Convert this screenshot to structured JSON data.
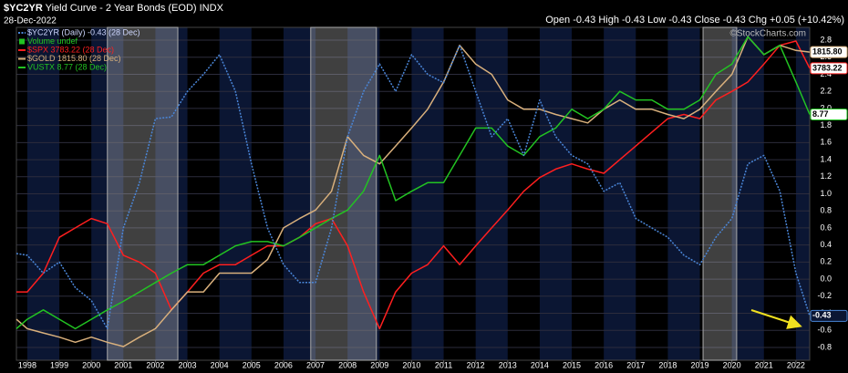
{
  "chart_data": {
    "type": "line",
    "symbol": "$YC2YR",
    "title": "Yield Curve - 2 Year Bonds (EOD)",
    "exchange": "INDX",
    "date": "28-Dec-2022",
    "ohlc": "Open -0.43 High -0.43 Low -0.43 Close -0.43 Chg +0.05 (+10.42%)",
    "watermark": "©StockCharts.com",
    "volume_label": "Volume undef",
    "grid": true,
    "x": [
      1997.66,
      1998,
      1998.5,
      1999,
      1999.5,
      2000,
      2000.5,
      2001,
      2001.5,
      2002,
      2002.5,
      2003,
      2003.5,
      2004,
      2004.5,
      2005,
      2005.5,
      2006,
      2006.5,
      2007,
      2007.5,
      2008,
      2008.5,
      2009,
      2009.5,
      2010,
      2010.5,
      2011,
      2011.5,
      2012,
      2012.5,
      2013,
      2013.5,
      2014,
      2014.5,
      2015,
      2015.5,
      2016,
      2016.5,
      2017,
      2017.5,
      2018,
      2018.5,
      2019,
      2019.5,
      2020,
      2020.5,
      2021,
      2021.5,
      2022,
      2022.43
    ],
    "xlim": [
      1997.66,
      2022.43
    ],
    "xticks": [
      1998,
      1999,
      2000,
      2001,
      2002,
      2003,
      2004,
      2005,
      2006,
      2007,
      2008,
      2009,
      2010,
      2011,
      2012,
      2013,
      2014,
      2015,
      2016,
      2017,
      2018,
      2019,
      2020,
      2021,
      2022
    ],
    "ylim": [
      -0.95,
      2.95
    ],
    "yticks": [
      -0.8,
      -0.6,
      -0.4,
      -0.2,
      {
        "value": 0,
        "label": "0.0"
      },
      0.2,
      0.4,
      0.6,
      0.8,
      {
        "value": 1,
        "label": "1.0"
      },
      1.2,
      1.4,
      1.6,
      1.8,
      {
        "value": 2,
        "label": "2.0"
      },
      2.2,
      2.4,
      2.6,
      2.8
    ],
    "highlight_spans": [
      [
        2000.5,
        2002.7
      ],
      [
        2006.85,
        2008.9
      ],
      [
        2019.1,
        2020.15
      ]
    ],
    "series": [
      {
        "name": "$YC2YR (Daily) -0.43 (28 Dec)",
        "color": "#4a86d8",
        "dashed": true,
        "last_label": "-0.43",
        "values": [
          0.3,
          0.28,
          0.07,
          0.2,
          -0.1,
          -0.25,
          -0.58,
          0.6,
          1.13,
          1.88,
          1.9,
          2.2,
          2.4,
          2.63,
          2.2,
          1.35,
          0.6,
          0.17,
          -0.04,
          -0.04,
          0.6,
          1.67,
          2.2,
          2.52,
          2.2,
          2.63,
          2.4,
          2.3,
          2.74,
          2.2,
          1.67,
          1.88,
          1.45,
          2.1,
          1.67,
          1.45,
          1.35,
          1.03,
          1.13,
          0.71,
          0.6,
          0.49,
          0.28,
          0.17,
          0.49,
          0.71,
          1.35,
          1.45,
          1.03,
          0.07,
          -0.43
        ]
      },
      {
        "name": "$SPX 3783.22 (28 Dec)",
        "color": "#ff1f1f",
        "dashed": false,
        "last_label": "3783.22",
        "values": [
          -0.15,
          -0.15,
          0.07,
          0.49,
          0.6,
          0.71,
          0.65,
          0.28,
          0.2,
          0.07,
          -0.36,
          -0.15,
          0.07,
          0.17,
          0.17,
          0.28,
          0.39,
          0.39,
          0.49,
          0.65,
          0.71,
          0.39,
          -0.15,
          -0.58,
          -0.15,
          0.07,
          0.17,
          0.39,
          0.17,
          0.39,
          0.6,
          0.81,
          1.03,
          1.19,
          1.29,
          1.35,
          1.29,
          1.24,
          1.4,
          1.56,
          1.72,
          1.88,
          1.93,
          1.88,
          2.1,
          2.2,
          2.31,
          2.52,
          2.74,
          2.79,
          2.47
        ]
      },
      {
        "name": "$GOLD 1815.80 (28 Dec)",
        "color": "#d9b07c",
        "dashed": false,
        "last_label": "1815.80",
        "values": [
          -0.47,
          -0.58,
          -0.63,
          -0.68,
          -0.74,
          -0.68,
          -0.74,
          -0.79,
          -0.68,
          -0.58,
          -0.36,
          -0.15,
          -0.15,
          0.07,
          0.07,
          0.07,
          0.23,
          0.6,
          0.71,
          0.81,
          1.03,
          1.67,
          1.45,
          1.35,
          1.56,
          1.77,
          1.99,
          2.31,
          2.74,
          2.52,
          2.4,
          2.1,
          1.99,
          1.99,
          1.93,
          1.88,
          1.83,
          1.99,
          2.1,
          1.99,
          1.99,
          1.93,
          1.88,
          1.99,
          2.2,
          2.4,
          2.84,
          2.63,
          2.74,
          2.68,
          2.66
        ]
      },
      {
        "name": "VUSTX 8.77 (28 Dec)",
        "color": "#22c322",
        "dashed": false,
        "last_label": "8.77",
        "values": [
          -0.58,
          -0.47,
          -0.36,
          -0.47,
          -0.58,
          -0.47,
          -0.36,
          -0.26,
          -0.15,
          -0.04,
          0.07,
          0.17,
          0.17,
          0.28,
          0.39,
          0.44,
          0.44,
          0.39,
          0.49,
          0.6,
          0.71,
          0.81,
          1.03,
          1.45,
          0.92,
          1.03,
          1.13,
          1.13,
          1.45,
          1.77,
          1.77,
          1.56,
          1.45,
          1.67,
          1.77,
          1.99,
          1.88,
          1.99,
          2.2,
          2.1,
          2.1,
          1.99,
          1.99,
          2.1,
          2.4,
          2.52,
          2.84,
          2.63,
          2.74,
          2.31,
          1.93
        ]
      }
    ]
  }
}
